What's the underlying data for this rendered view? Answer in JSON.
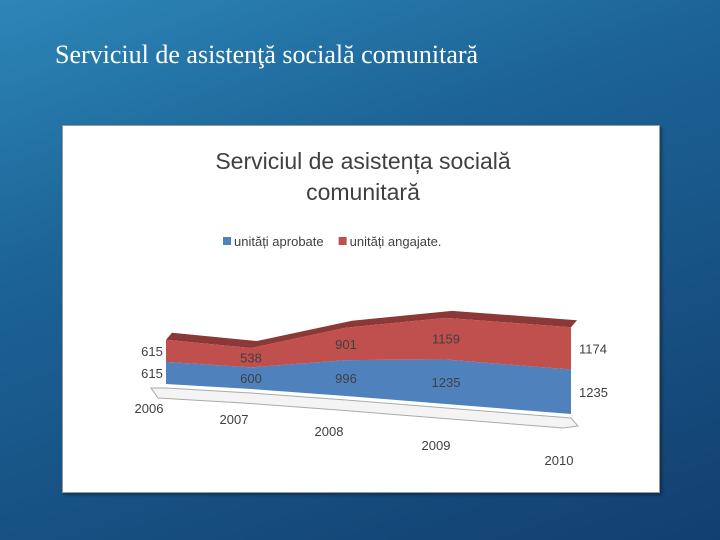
{
  "slide_title": "Serviciul de asistenţă socială comunitară",
  "chart_data": {
    "type": "area",
    "title": "Serviciul de  asistența socială comunitară",
    "categories": [
      "2006",
      "2007",
      "2008",
      "2009",
      "2010"
    ],
    "stacked": true,
    "series": [
      {
        "name": "unități aprobate",
        "color": "#4f81bd",
        "values": [
          615,
          600,
          996,
          1235,
          1235
        ]
      },
      {
        "name": "unități angajate.",
        "color": "#c0504d",
        "values": [
          615,
          538,
          901,
          1159,
          1174
        ]
      }
    ]
  }
}
